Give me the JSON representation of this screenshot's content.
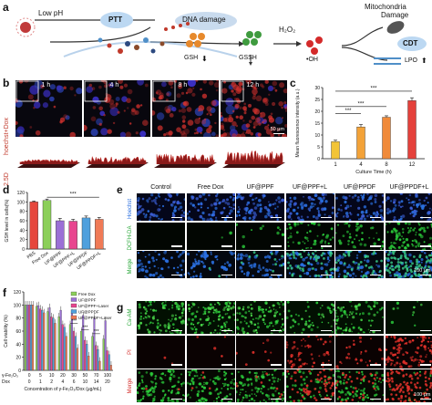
{
  "panel_a": {
    "letter": "a",
    "low_ph": "Low pH",
    "ptt": "PTT",
    "dna_damage": "DNA damage",
    "gsh": "GSH",
    "gssh": "GSSH",
    "h2o2": "H₂O₂",
    "oh": "•OH",
    "mito1": "Mitochondria",
    "mito2": "Damage",
    "cdt": "CDT",
    "lpo": "LPO"
  },
  "panel_b": {
    "letter": "b",
    "side_label_2d": "hoechst+Dox",
    "side_label_25d": "2.5D",
    "times": [
      "1 h",
      "4 h",
      "8 h",
      "12 h"
    ],
    "scale": "50 μm"
  },
  "panel_d": {
    "letter": "d",
    "sig": "***"
  },
  "panel_e": {
    "letter": "e",
    "columns": [
      "Control",
      "Free Dox",
      "UF@PPF",
      "UF@PPF+L",
      "UF@PPDF",
      "UF@PPDF+L"
    ],
    "rows": [
      "Hoechst",
      "DCFH-DA",
      "Merge"
    ],
    "scale": "100 μm"
  },
  "panel_f": {
    "letter": "f",
    "row1_label": "γ-Fe₂O₃",
    "row2_label": "Dox",
    "row1_values": [
      "0",
      "5",
      "10",
      "20",
      "30",
      "50",
      "70",
      "100"
    ],
    "row2_values": [
      "0",
      "1",
      "2",
      "4",
      "6",
      "10",
      "14",
      "20"
    ],
    "sig": "***"
  },
  "panel_g": {
    "letter": "g",
    "rows": [
      "Ca-AM",
      "PI",
      "Merge"
    ],
    "scale": "100 μm"
  },
  "chart_data": [
    {
      "id": "c",
      "letter": "c",
      "type": "bar",
      "categories": [
        "1",
        "4",
        "8",
        "12"
      ],
      "values": [
        7.2,
        13.4,
        17.5,
        24.5
      ],
      "errors": [
        0.6,
        1.0,
        0.6,
        1.2
      ],
      "colors": [
        "#f2c437",
        "#f3a238",
        "#f08a3a",
        "#e5413b"
      ],
      "xlabel": "Culture Time (h)",
      "ylabel": "Mean fluorescence intensity (a.u.)",
      "ylim": [
        0,
        30
      ],
      "yticks": [
        "0",
        "5",
        "10",
        "15",
        "20",
        "25",
        "30"
      ],
      "significance": [
        "***",
        "***",
        "***"
      ]
    },
    {
      "id": "d",
      "letter": "d",
      "type": "bar",
      "categories": [
        "PBS",
        "Free Dox",
        "UF@PPF",
        "UF@PPF+L",
        "UF@PPDF",
        "UF@PPDF+L"
      ],
      "values": [
        100,
        103,
        60,
        59,
        66,
        63
      ],
      "errors": [
        2,
        3,
        5,
        4,
        4,
        4
      ],
      "colors": [
        "#e6463c",
        "#8ccf5a",
        "#9b6fd6",
        "#e8458f",
        "#4fa0dd",
        "#f07a56"
      ],
      "ylabel": "GSH level in cells(%)",
      "ylim": [
        0,
        120
      ],
      "yticks": [
        "0",
        "20",
        "40",
        "60",
        "80",
        "100",
        "120"
      ],
      "significance": "***"
    },
    {
      "id": "f",
      "letter": "f",
      "type": "bar",
      "categories": [
        "0",
        "5",
        "10",
        "20",
        "30",
        "50",
        "70",
        "100"
      ],
      "ylabel": "Cell viability (%)",
      "xlabel": "Concentration of γ-Fe₂O₃/Dox (μg/mL)",
      "ylim": [
        0,
        120
      ],
      "yticks": [
        "0",
        "20",
        "40",
        "60",
        "80",
        "100",
        "120"
      ],
      "series": [
        {
          "name": "Free Dox",
          "color": "#8ccf5a",
          "values": [
            100,
            98,
            90,
            82,
            70,
            60,
            52,
            48
          ]
        },
        {
          "name": "UF@PPF",
          "color": "#9b6fd6",
          "values": [
            100,
            99,
            96,
            92,
            88,
            84,
            80,
            76
          ]
        },
        {
          "name": "UF@PPF+Laser",
          "color": "#e8458f",
          "values": [
            100,
            94,
            82,
            70,
            60,
            46,
            38,
            30
          ]
        },
        {
          "name": "UF@PPDF",
          "color": "#4fa0dd",
          "values": [
            100,
            92,
            80,
            66,
            52,
            40,
            32,
            24
          ]
        },
        {
          "name": "UF@PPDF+Laser",
          "color": "#f07a56",
          "values": [
            100,
            88,
            72,
            52,
            34,
            22,
            14,
            8
          ]
        }
      ],
      "significance": [
        "***",
        "***",
        "***"
      ]
    }
  ]
}
